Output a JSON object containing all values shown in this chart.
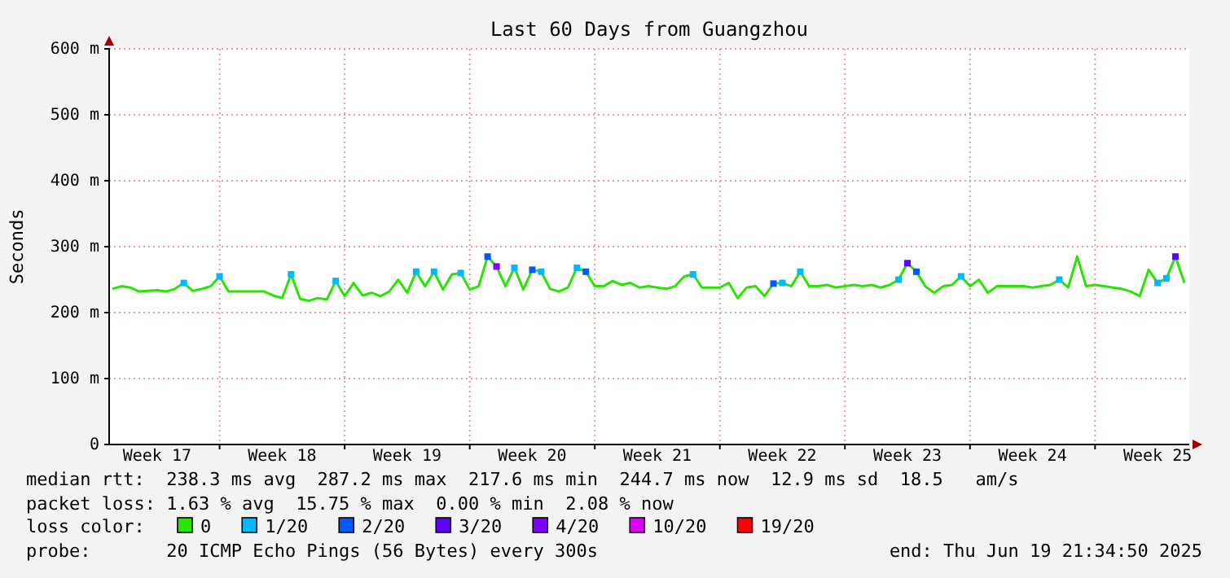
{
  "chart_data": {
    "type": "line",
    "title": "Last 60 Days from Guangzhou",
    "ylabel": "Seconds",
    "legend_title": "loss color:",
    "legend": "bottom",
    "grid": true,
    "categories": [
      null,
      null,
      null,
      null,
      null,
      "Week 17",
      null,
      null,
      null,
      null,
      null,
      null,
      null,
      null,
      null,
      null,
      null,
      null,
      null,
      "Week 18",
      null,
      null,
      null,
      null,
      null,
      null,
      null,
      null,
      null,
      null,
      null,
      null,
      null,
      "Week 19",
      null,
      null,
      null,
      null,
      null,
      null,
      null,
      null,
      null,
      null,
      null,
      null,
      null,
      "Week 20",
      null,
      null,
      null,
      null,
      null,
      null,
      null,
      null,
      null,
      null,
      null,
      null,
      null,
      "Week 21",
      null,
      null,
      null,
      null,
      null,
      null,
      null,
      null,
      null,
      null,
      null,
      null,
      null,
      "Week 22",
      null,
      null,
      null,
      null,
      null,
      null,
      null,
      null,
      null,
      null,
      null,
      null,
      null,
      "Week 23",
      null,
      null,
      null,
      null,
      null,
      null,
      null,
      null,
      null,
      null,
      null,
      null,
      null,
      "Week 24",
      null,
      null,
      null,
      null,
      null,
      null,
      null,
      null,
      null,
      null,
      null,
      null,
      null,
      "Week 25",
      null,
      null,
      null
    ],
    "ylim": [
      0,
      600
    ],
    "yticks": [
      {
        "value": 0,
        "label": "0"
      },
      {
        "value": 100,
        "label": "100 m"
      },
      {
        "value": 200,
        "label": "200 m"
      },
      {
        "value": 300,
        "label": "300 m"
      },
      {
        "value": 400,
        "label": "400 m"
      },
      {
        "value": 500,
        "label": "500 m"
      },
      {
        "value": 600,
        "label": "600 m"
      }
    ],
    "series": [
      {
        "name": "0",
        "color": "#26e600",
        "values": [
          236,
          240,
          238,
          232,
          233,
          234,
          232,
          236,
          245,
          233,
          236,
          240,
          255,
          232,
          232,
          232,
          232,
          232,
          226,
          222,
          258,
          221,
          218,
          222,
          220,
          248,
          225,
          245,
          226,
          230,
          225,
          232,
          250,
          230,
          262,
          240,
          262,
          235,
          258,
          260,
          235,
          240,
          285,
          270,
          240,
          268,
          235,
          265,
          262,
          236,
          232,
          238,
          268,
          262,
          240,
          240,
          248,
          242,
          245,
          238,
          240,
          238,
          236,
          240,
          255,
          258,
          238,
          238,
          238,
          245,
          222,
          238,
          240,
          225,
          244,
          245,
          240,
          262,
          240,
          240,
          242,
          238,
          240,
          242,
          240,
          242,
          238,
          242,
          250,
          275,
          262,
          240,
          230,
          240,
          242,
          255,
          240,
          250,
          230,
          240,
          240,
          240,
          240,
          238,
          240,
          242,
          250,
          238,
          285,
          240,
          242,
          240,
          238,
          236,
          232,
          225,
          265,
          245,
          252,
          285,
          245
        ]
      },
      {
        "name": "1/20",
        "color": "#00b8ff",
        "type": "scatter",
        "values": [
          null,
          null,
          null,
          null,
          null,
          null,
          null,
          null,
          245,
          null,
          null,
          null,
          255,
          null,
          null,
          null,
          null,
          null,
          null,
          null,
          258,
          null,
          null,
          null,
          null,
          248,
          null,
          null,
          null,
          null,
          null,
          null,
          null,
          null,
          262,
          null,
          262,
          null,
          null,
          260,
          null,
          null,
          null,
          null,
          null,
          268,
          null,
          null,
          262,
          null,
          null,
          null,
          268,
          null,
          null,
          null,
          null,
          null,
          null,
          null,
          null,
          null,
          null,
          null,
          null,
          258,
          null,
          null,
          null,
          null,
          null,
          null,
          null,
          null,
          null,
          245,
          null,
          262,
          null,
          null,
          null,
          null,
          null,
          null,
          null,
          null,
          null,
          null,
          250,
          null,
          null,
          null,
          null,
          null,
          null,
          255,
          null,
          null,
          null,
          null,
          null,
          null,
          null,
          null,
          null,
          null,
          250,
          null,
          null,
          null,
          null,
          null,
          null,
          null,
          null,
          null,
          null,
          245,
          252,
          null,
          null
        ]
      },
      {
        "name": "2/20",
        "color": "#0059ff",
        "type": "scatter",
        "values": [
          null,
          null,
          null,
          null,
          null,
          null,
          null,
          null,
          null,
          null,
          null,
          null,
          null,
          null,
          null,
          null,
          null,
          null,
          null,
          null,
          null,
          null,
          null,
          null,
          null,
          null,
          null,
          null,
          null,
          null,
          null,
          null,
          null,
          null,
          null,
          null,
          null,
          null,
          null,
          null,
          null,
          null,
          285,
          null,
          null,
          null,
          null,
          265,
          null,
          null,
          null,
          null,
          null,
          262,
          null,
          null,
          null,
          null,
          null,
          null,
          null,
          null,
          null,
          null,
          null,
          null,
          null,
          null,
          null,
          null,
          null,
          null,
          null,
          null,
          244,
          null,
          null,
          null,
          null,
          null,
          null,
          null,
          null,
          null,
          null,
          null,
          null,
          null,
          null,
          null,
          262,
          null,
          null,
          null,
          null,
          null,
          null,
          null,
          null,
          null,
          null,
          null,
          null,
          null,
          null,
          null,
          null,
          null,
          null,
          null,
          null,
          null,
          null,
          null,
          null,
          null,
          null,
          null,
          null,
          null,
          null
        ]
      },
      {
        "name": "3/20",
        "color": "#5e00ff",
        "type": "scatter",
        "values": [
          null,
          null,
          null,
          null,
          null,
          null,
          null,
          null,
          null,
          null,
          null,
          null,
          null,
          null,
          null,
          null,
          null,
          null,
          null,
          null,
          null,
          null,
          null,
          null,
          null,
          null,
          null,
          null,
          null,
          null,
          null,
          null,
          null,
          null,
          null,
          null,
          null,
          null,
          null,
          null,
          null,
          null,
          null,
          null,
          null,
          null,
          null,
          null,
          null,
          null,
          null,
          null,
          null,
          null,
          null,
          null,
          null,
          null,
          null,
          null,
          null,
          null,
          null,
          null,
          null,
          null,
          null,
          null,
          null,
          null,
          null,
          null,
          null,
          null,
          null,
          null,
          null,
          null,
          null,
          null,
          null,
          null,
          null,
          null,
          null,
          null,
          null,
          null,
          null,
          275,
          null,
          null,
          null,
          null,
          null,
          null,
          null,
          null,
          null,
          null,
          null,
          null,
          null,
          null,
          null,
          null,
          null,
          null,
          null,
          null,
          null,
          null,
          null,
          null,
          null,
          null,
          null,
          null,
          null,
          285,
          null
        ]
      },
      {
        "name": "4/20",
        "color": "#7e00ff",
        "type": "scatter",
        "values": [
          null,
          null,
          null,
          null,
          null,
          null,
          null,
          null,
          null,
          null,
          null,
          null,
          null,
          null,
          null,
          null,
          null,
          null,
          null,
          null,
          null,
          null,
          null,
          null,
          null,
          null,
          null,
          null,
          null,
          null,
          null,
          null,
          null,
          null,
          null,
          null,
          null,
          null,
          null,
          null,
          null,
          null,
          null,
          270,
          null,
          null,
          null,
          null,
          null,
          null,
          null,
          null,
          null,
          null,
          null,
          null,
          null,
          null,
          null,
          null,
          null,
          null,
          null,
          null,
          null,
          null,
          null,
          null,
          null,
          null,
          null,
          null,
          null,
          null,
          null,
          null,
          null,
          null,
          null,
          null,
          null,
          null,
          null,
          null,
          null,
          null,
          null,
          null,
          null,
          null,
          null,
          null,
          null,
          null,
          null,
          null,
          null,
          null,
          null,
          null,
          null,
          null,
          null,
          null,
          null,
          null,
          null,
          null,
          null,
          null,
          null,
          null,
          null,
          null,
          null,
          null,
          null,
          null,
          null,
          null,
          null
        ]
      },
      {
        "name": "10/20",
        "color": "#dd00ff",
        "type": "scatter",
        "values": [
          null,
          null,
          null,
          null,
          null,
          null,
          null,
          null,
          null,
          null,
          null,
          null,
          null,
          null,
          null,
          null,
          null,
          null,
          null,
          null,
          null,
          null,
          null,
          null,
          null,
          null,
          null,
          null,
          null,
          null,
          null,
          null,
          null,
          null,
          null,
          null,
          null,
          null,
          null,
          null,
          null,
          null,
          null,
          null,
          null,
          null,
          null,
          null,
          null,
          null,
          null,
          null,
          null,
          null,
          null,
          null,
          null,
          null,
          null,
          null,
          null,
          null,
          null,
          null,
          null,
          null,
          null,
          null,
          null,
          null,
          null,
          null,
          null,
          null,
          null,
          null,
          null,
          null,
          null,
          null,
          null,
          null,
          null,
          null,
          null,
          null,
          null,
          null,
          null,
          null,
          null,
          null,
          null,
          null,
          null,
          null,
          null,
          null,
          null,
          null,
          null,
          null,
          null,
          null,
          null,
          null,
          null,
          null,
          null,
          null,
          null,
          null,
          null,
          null,
          null,
          null,
          null,
          null,
          null,
          null,
          null
        ]
      },
      {
        "name": "19/20",
        "color": "#ff0000",
        "type": "scatter",
        "values": [
          null,
          null,
          null,
          null,
          null,
          null,
          null,
          null,
          null,
          null,
          null,
          null,
          null,
          null,
          null,
          null,
          null,
          null,
          null,
          null,
          null,
          null,
          null,
          null,
          null,
          null,
          null,
          null,
          null,
          null,
          null,
          null,
          null,
          null,
          null,
          null,
          null,
          null,
          null,
          null,
          null,
          null,
          null,
          null,
          null,
          null,
          null,
          null,
          null,
          null,
          null,
          null,
          null,
          null,
          null,
          null,
          null,
          null,
          null,
          null,
          null,
          null,
          null,
          null,
          null,
          null,
          null,
          null,
          null,
          null,
          null,
          null,
          null,
          null,
          null,
          null,
          null,
          null,
          null,
          null,
          null,
          null,
          null,
          null,
          null,
          null,
          null,
          null,
          null,
          null,
          null,
          null,
          null,
          null,
          null,
          null,
          null,
          null,
          null,
          null,
          null,
          null,
          null,
          null,
          null,
          null,
          null,
          null,
          null,
          null,
          null,
          null,
          null,
          null,
          null,
          null,
          null,
          null,
          null,
          null,
          null
        ]
      }
    ],
    "annotations": [
      "median rtt:  238.3 ms avg  287.2 ms max  217.6 ms min  244.7 ms now  12.9 ms sd  18.5   am/s",
      "packet loss: 1.63 % avg  15.75 % max  0.00 % min  2.08 % now",
      "probe:       20 ICMP Echo Pings (56 Bytes) every 300s",
      "end: Thu Jun 19 21:34:50 2025"
    ]
  }
}
